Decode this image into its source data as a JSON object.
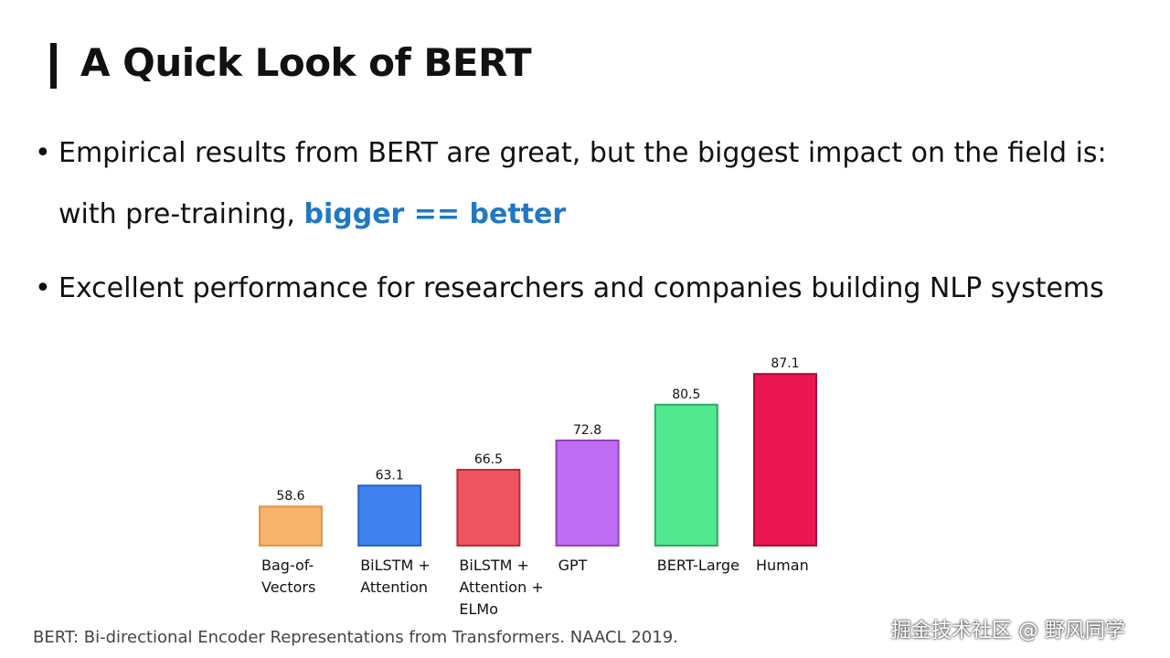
{
  "slide": {
    "title": "A Quick Look of BERT",
    "bullets": [
      {
        "text": "Empirical results from BERT are great, but the biggest impact on the field is:",
        "line2_prefix": "with pre-training, ",
        "line2_highlight": "bigger == better"
      },
      {
        "text": "Excellent performance for researchers and companies building NLP systems"
      }
    ],
    "bullet_symbol": "•",
    "highlight_color": "#1f78c8",
    "footnote": "BERT: Bi-directional Encoder Representations from Transformers. NAACL 2019.",
    "watermark": "掘金技术社区 @ 野风同学"
  },
  "chart_data": {
    "type": "bar",
    "categories": [
      [
        "Bag-of-",
        "Vectors"
      ],
      [
        "BiLSTM +",
        "Attention"
      ],
      [
        "BiLSTM +",
        "Attention +",
        "ELMo"
      ],
      [
        "GPT"
      ],
      [
        "BERT-Large"
      ],
      [
        "Human"
      ]
    ],
    "values": [
      58.6,
      63.1,
      66.5,
      72.8,
      80.5,
      87.1
    ],
    "data_labels": [
      "58.6",
      "63.1",
      "66.5",
      "72.8",
      "80.5",
      "87.1"
    ],
    "colors": [
      "#F5B36B",
      "#3F82F0",
      "#EE5560",
      "#BF6DF3",
      "#52E890",
      "#EB1651"
    ],
    "border_colors": [
      "#E0964A",
      "#2A62C0",
      "#B82A35",
      "#9040C0",
      "#2FA860",
      "#A80D35"
    ],
    "ylim": [
      50.2,
      90
    ],
    "grid": false,
    "axes_visible": false
  }
}
